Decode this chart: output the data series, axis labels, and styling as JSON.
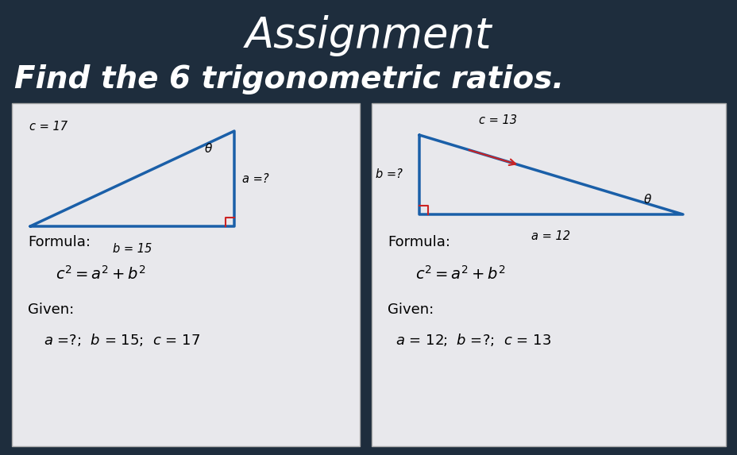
{
  "background_color": "#1e2d3d",
  "title": "Assignment",
  "subtitle": "Find the 6 trigonometric ratios.",
  "title_color": "#ffffff",
  "subtitle_color": "#ffffff",
  "title_fontsize": 38,
  "subtitle_fontsize": 28,
  "panel_bg": "#e8e8ec",
  "panel_edge": "#aaaaaa",
  "left_panel": {
    "triangle_color": "#1a5fa8",
    "right_angle_color": "#cc2222",
    "label_c": "c = 17",
    "label_a": "a =?",
    "label_b": "b = 15",
    "label_theta": "θ",
    "formula_label": "Formula:",
    "given_label": "Given:",
    "given_text": "a =?;  b = 15;  c = 17"
  },
  "right_panel": {
    "triangle_color": "#1a5fa8",
    "right_angle_color": "#cc2222",
    "arrow_color": "#cc2222",
    "label_c": "c = 13",
    "label_a": "a = 12",
    "label_b": "b =?",
    "label_theta": "θ",
    "formula_label": "Formula:",
    "given_label": "Given:",
    "given_text": "a = 12;  b =?;  c = 13"
  }
}
